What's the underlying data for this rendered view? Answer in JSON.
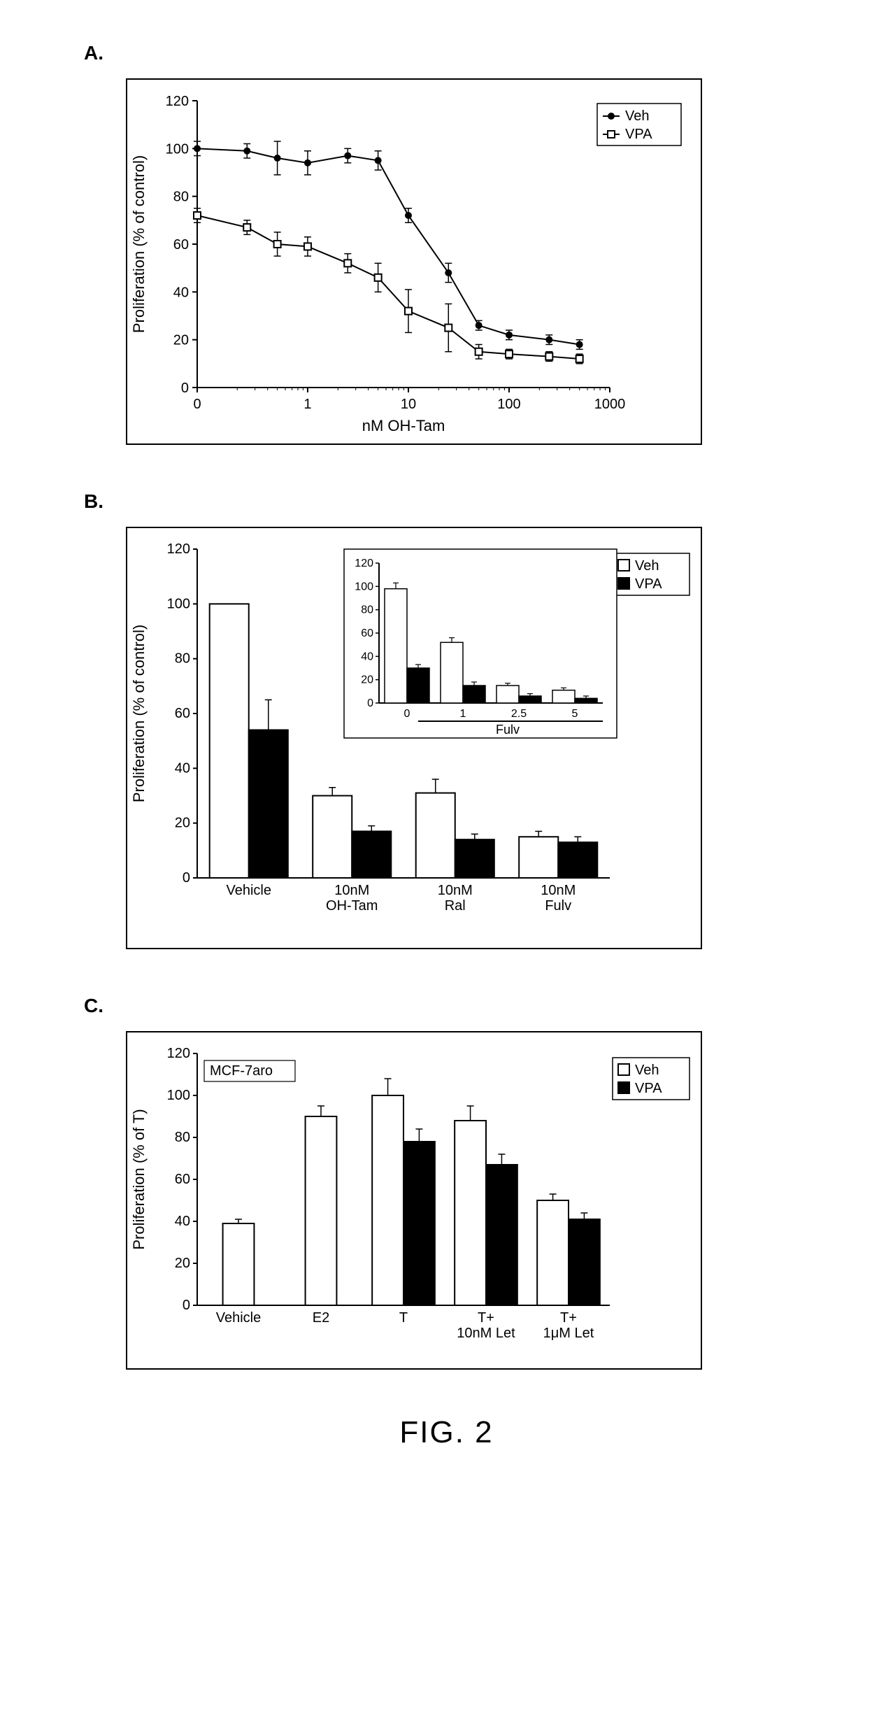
{
  "figure_label": "FIG. 2",
  "panelA": {
    "label": "A.",
    "type": "line",
    "xlabel": "nM OH-Tam",
    "ylabel": "Proliferation (% of control)",
    "xlog": true,
    "xlim": [
      0.08,
      1000
    ],
    "ylim": [
      0,
      120
    ],
    "ytick_step": 20,
    "xticks_labels": [
      "0",
      "1",
      "10",
      "100",
      "1000"
    ],
    "xticks_pos": [
      0.08,
      1,
      10,
      100,
      1000
    ],
    "x_data": [
      0.08,
      0.25,
      0.5,
      1,
      2.5,
      5,
      10,
      25,
      50,
      100,
      250,
      500
    ],
    "series": [
      {
        "name": "Veh",
        "marker": "filled-circle",
        "color": "#000000",
        "y": [
          100,
          99,
          96,
          94,
          97,
          95,
          72,
          48,
          26,
          22,
          20,
          18
        ],
        "err": [
          3,
          3,
          7,
          5,
          3,
          4,
          3,
          4,
          2,
          2,
          2,
          2
        ]
      },
      {
        "name": "VPA",
        "marker": "open-square",
        "color": "#000000",
        "y": [
          72,
          67,
          60,
          59,
          52,
          46,
          32,
          25,
          15,
          14,
          13,
          12
        ],
        "err": [
          3,
          3,
          5,
          4,
          4,
          6,
          9,
          10,
          3,
          2,
          2,
          2
        ]
      }
    ],
    "background_color": "#ffffff",
    "axis_color": "#000000",
    "font_size_axis": 20,
    "font_size_label": 22
  },
  "panelB": {
    "label": "B.",
    "type": "bar",
    "xlabel": "",
    "ylabel": "Proliferation (% of control)",
    "ylim": [
      0,
      120
    ],
    "ytick_step": 20,
    "categories": [
      "Vehicle",
      "10nM\nOH-Tam",
      "10nM\nRal",
      "10nM\nFulv"
    ],
    "series": [
      {
        "name": "Veh",
        "fill": "#ffffff",
        "stroke": "#000000",
        "y": [
          100,
          30,
          31,
          15
        ],
        "err": [
          0,
          3,
          5,
          2
        ]
      },
      {
        "name": "VPA",
        "fill": "#000000",
        "stroke": "#000000",
        "y": [
          54,
          17,
          14,
          13
        ],
        "err": [
          11,
          2,
          2,
          2
        ]
      }
    ],
    "bar_width": 0.38,
    "background_color": "#ffffff",
    "axis_color": "#000000",
    "font_size_axis": 20,
    "font_size_label": 22,
    "inset": {
      "type": "bar",
      "ylim": [
        0,
        120
      ],
      "ytick_step": 20,
      "categories": [
        "0",
        "1",
        "2.5",
        "5"
      ],
      "xlabel": "Fulv",
      "series": [
        {
          "name": "Veh",
          "fill": "#ffffff",
          "stroke": "#000000",
          "y": [
            98,
            52,
            15,
            11
          ],
          "err": [
            5,
            4,
            2,
            2
          ]
        },
        {
          "name": "VPA",
          "fill": "#000000",
          "stroke": "#000000",
          "y": [
            30,
            15,
            6,
            4
          ],
          "err": [
            3,
            3,
            2,
            2
          ]
        }
      ],
      "bar_width": 0.4
    }
  },
  "panelC": {
    "label": "C.",
    "type": "bar",
    "title_inset": "MCF-7aro",
    "xlabel": "",
    "ylabel": "Proliferation (% of T)",
    "ylim": [
      0,
      120
    ],
    "ytick_step": 20,
    "categories": [
      "Vehicle",
      "E2",
      "T",
      "T+\n10nM Let",
      "T+\n1μM Let"
    ],
    "series": [
      {
        "name": "Veh",
        "fill": "#ffffff",
        "stroke": "#000000",
        "y": [
          39,
          90,
          100,
          88,
          50
        ],
        "err": [
          2,
          5,
          8,
          7,
          3
        ]
      },
      {
        "name": "VPA",
        "fill": "#000000",
        "stroke": "#000000",
        "y": [
          null,
          null,
          78,
          67,
          41
        ],
        "err": [
          null,
          null,
          6,
          5,
          3
        ]
      }
    ],
    "bar_width": 0.38,
    "background_color": "#ffffff",
    "axis_color": "#000000",
    "font_size_axis": 20,
    "font_size_label": 22
  },
  "legend_common": {
    "box_stroke": "#000000",
    "box_fill": "#ffffff",
    "font_size": 20
  }
}
